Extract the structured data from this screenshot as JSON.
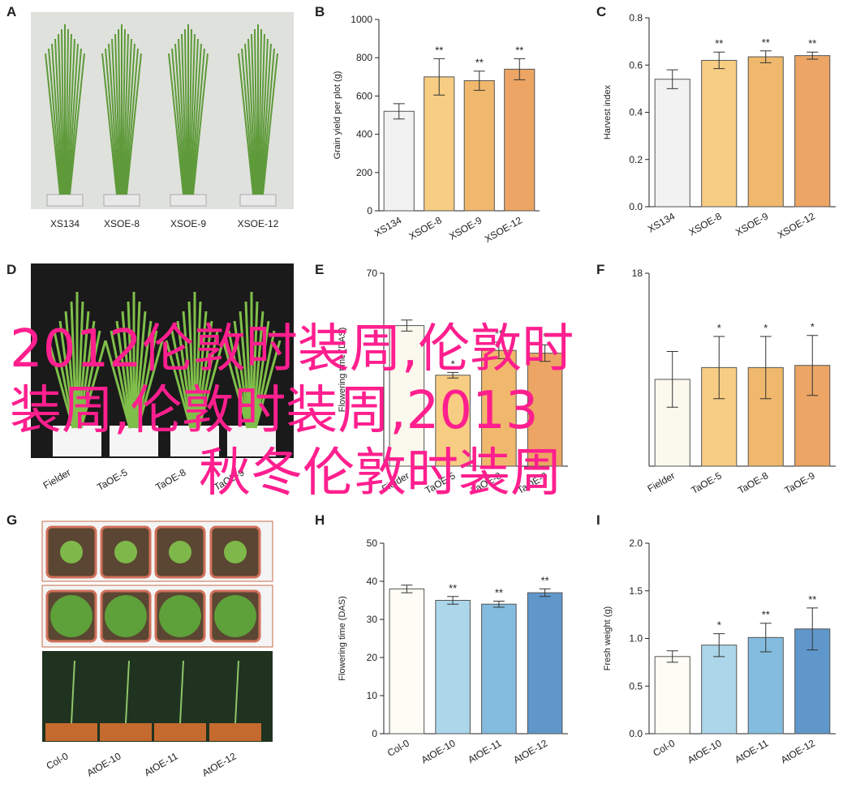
{
  "panels": [
    {
      "label": "A",
      "captions": [
        "XS134",
        "XSOE-8",
        "XSOE-9",
        "XSOE-12"
      ]
    },
    {
      "label": "D",
      "captions": [
        "Fielder",
        "TaOE-5",
        "TaOE-8",
        "TaOE-9"
      ]
    },
    {
      "label": "G",
      "captions": [
        "Col-0",
        "AtOE-10",
        "AtOE-11",
        "AtOE-12"
      ]
    }
  ],
  "chart_data": [
    {
      "type": "bar",
      "panel": "B",
      "ylabel": "Grain yield per plot (g)",
      "categories": [
        "XS134",
        "XSOE-8",
        "XSOE-9",
        "XSOE-12"
      ],
      "values": [
        520,
        700,
        680,
        740
      ],
      "errors": [
        40,
        95,
        50,
        55
      ],
      "annotations": [
        null,
        "**",
        "**",
        "**"
      ],
      "colors": [
        "#f2f2f2",
        "#f6cd82",
        "#f0b86c",
        "#eca564"
      ],
      "ylim": [
        0,
        1000
      ],
      "yticks": [
        0,
        200,
        400,
        600,
        800,
        1000
      ]
    },
    {
      "type": "bar",
      "panel": "C",
      "ylabel": "Harvest index",
      "categories": [
        "XS134",
        "XSOE-8",
        "XSOE-9",
        "XSOE-12"
      ],
      "values": [
        0.54,
        0.62,
        0.635,
        0.64
      ],
      "errors": [
        0.04,
        0.035,
        0.025,
        0.015
      ],
      "annotations": [
        null,
        "**",
        "**",
        "**"
      ],
      "colors": [
        "#f2f2f2",
        "#f6cd82",
        "#f0b86c",
        "#eca564"
      ],
      "ylim": [
        0,
        0.8
      ],
      "yticks": [
        {
          "value": 0,
          "label": "0.0"
        },
        0.2,
        0.4,
        0.6,
        0.8
      ]
    },
    {
      "type": "bar",
      "panel": "E",
      "ylabel": "Flowering time (DAS)",
      "categories": [
        "Fielder",
        "TaOE-5",
        "TaOE-8",
        "TaOE-9"
      ],
      "values": [
        51,
        33,
        42,
        41
      ],
      "errors": [
        2,
        1,
        3,
        3
      ],
      "annotations": [
        null,
        "*",
        "**",
        "*"
      ],
      "colors": [
        "#fbf8ee",
        "#f6cd82",
        "#f0b86c",
        "#eca564"
      ],
      "ylim": [
        0,
        70
      ],
      "yticks": [
        70
      ]
    },
    {
      "type": "bar",
      "panel": "F",
      "categories": [
        "Fielder",
        "TaOE-5",
        "TaOE-8",
        "TaOE-9"
      ],
      "values": [
        8.1,
        9.2,
        9.2,
        9.4
      ],
      "errors": [
        2.6,
        2.9,
        2.9,
        2.8
      ],
      "annotations": [
        null,
        "*",
        "*",
        "*"
      ],
      "colors": [
        "#fbf8ee",
        "#f6cd82",
        "#f0b86c",
        "#eca564"
      ],
      "ylim": [
        0,
        18
      ],
      "yticks": [
        18
      ]
    },
    {
      "type": "bar",
      "panel": "H",
      "ylabel": "Flowering time (DAS)",
      "categories": [
        "Col-0",
        "AtOE-10",
        "AtOE-11",
        "AtOE-12"
      ],
      "values": [
        38,
        35,
        34,
        37
      ],
      "errors": [
        1,
        1,
        0.8,
        1
      ],
      "annotations": [
        null,
        "**",
        "**",
        "**"
      ],
      "colors": [
        "#fdfdf5",
        "#acd6ea",
        "#84bcdf",
        "#5f97cb"
      ],
      "ylim": [
        0,
        50
      ],
      "yticks": [
        0,
        10,
        20,
        30,
        40,
        50
      ]
    },
    {
      "type": "bar",
      "panel": "I",
      "ylabel": "Fresh weight (g)",
      "categories": [
        "Col-0",
        "AtOE-10",
        "AtOE-11",
        "AtOE-12"
      ],
      "values": [
        0.81,
        0.93,
        1.01,
        1.1
      ],
      "errors": [
        0.06,
        0.12,
        0.15,
        0.22
      ],
      "annotations": [
        null,
        "*",
        "**",
        "**"
      ],
      "colors": [
        "#fdfdf5",
        "#acd6ea",
        "#84bcdf",
        "#5f97cb"
      ],
      "ylim": [
        0,
        2
      ],
      "yticks": [
        {
          "value": 0,
          "label": "0.0"
        },
        0.5,
        {
          "value": 1,
          "label": "1.0"
        },
        1.5,
        {
          "value": 2,
          "label": "2.0"
        }
      ]
    }
  ],
  "overlay": [
    "2012伦敦时装周,伦敦时",
    "装周,伦敦时装周,2013",
    "秋冬伦敦时装周"
  ]
}
